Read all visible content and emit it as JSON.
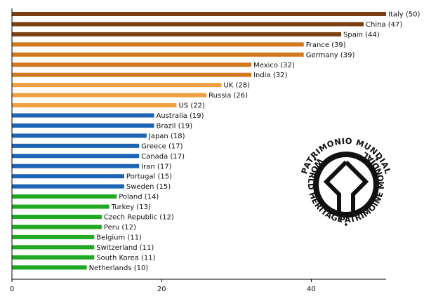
{
  "chart_data": {
    "type": "bar",
    "orientation": "horizontal",
    "title": "",
    "xlabel": "",
    "ylabel": "",
    "xlim": [
      0,
      50
    ],
    "xticks": [
      0,
      20,
      40
    ],
    "grid": false,
    "legend": "none",
    "categories": [
      "Italy",
      "China",
      "Spain",
      "France",
      "Germany",
      "Mexico",
      "India",
      "UK",
      "Russia",
      "US",
      "Australia",
      "Brazil",
      "Japan",
      "Greece",
      "Canada",
      "Iran",
      "Portugal",
      "Sweden",
      "Poland",
      "Turkey",
      "Czech Republic",
      "Peru",
      "Belgium",
      "Switzerland",
      "South Korea",
      "Netherlands"
    ],
    "values": [
      50,
      47,
      44,
      39,
      39,
      32,
      32,
      28,
      26,
      22,
      19,
      19,
      18,
      17,
      17,
      17,
      15,
      15,
      14,
      13,
      12,
      12,
      11,
      11,
      11,
      10
    ],
    "labels": [
      "Italy (50)",
      "China (47)",
      "Spain (44)",
      "France (39)",
      "Germany (39)",
      "Mexico (32)",
      "India (32)",
      "UK (28)",
      "Russia (26)",
      "US (22)",
      "Australia (19)",
      "Brazil (19)",
      "Japan (18)",
      "Greece (17)",
      "Canada (17)",
      "Iran (17)",
      "Portugal (15)",
      "Sweden (15)",
      "Poland (14)",
      "Turkey (13)",
      "Czech Republic (12)",
      "Peru (12)",
      "Belgium (11)",
      "Switzerland (11)",
      "South Korea (11)",
      "Netherlands (10)"
    ],
    "bar_colors": [
      "#7b3f12",
      "#7b3f12",
      "#7b3f12",
      "#d2791f",
      "#d2791f",
      "#d2791f",
      "#d2791f",
      "#f0a040",
      "#f0a040",
      "#f0a040",
      "#1f65b5",
      "#1f65b5",
      "#1f65b5",
      "#1f65b5",
      "#1f65b5",
      "#1f65b5",
      "#1f65b5",
      "#1f65b5",
      "#22a822",
      "#22a822",
      "#22a822",
      "#22a822",
      "#22a822",
      "#22a822",
      "#22a822",
      "#22a822"
    ]
  },
  "emblem": {
    "name": "world-heritage-emblem",
    "text_top": "PATRIMONIO MUNDIAL",
    "text_left": "WORLD HERITAGE",
    "text_right": "PATRIMOINE MONDIAL",
    "color": "#111111"
  }
}
